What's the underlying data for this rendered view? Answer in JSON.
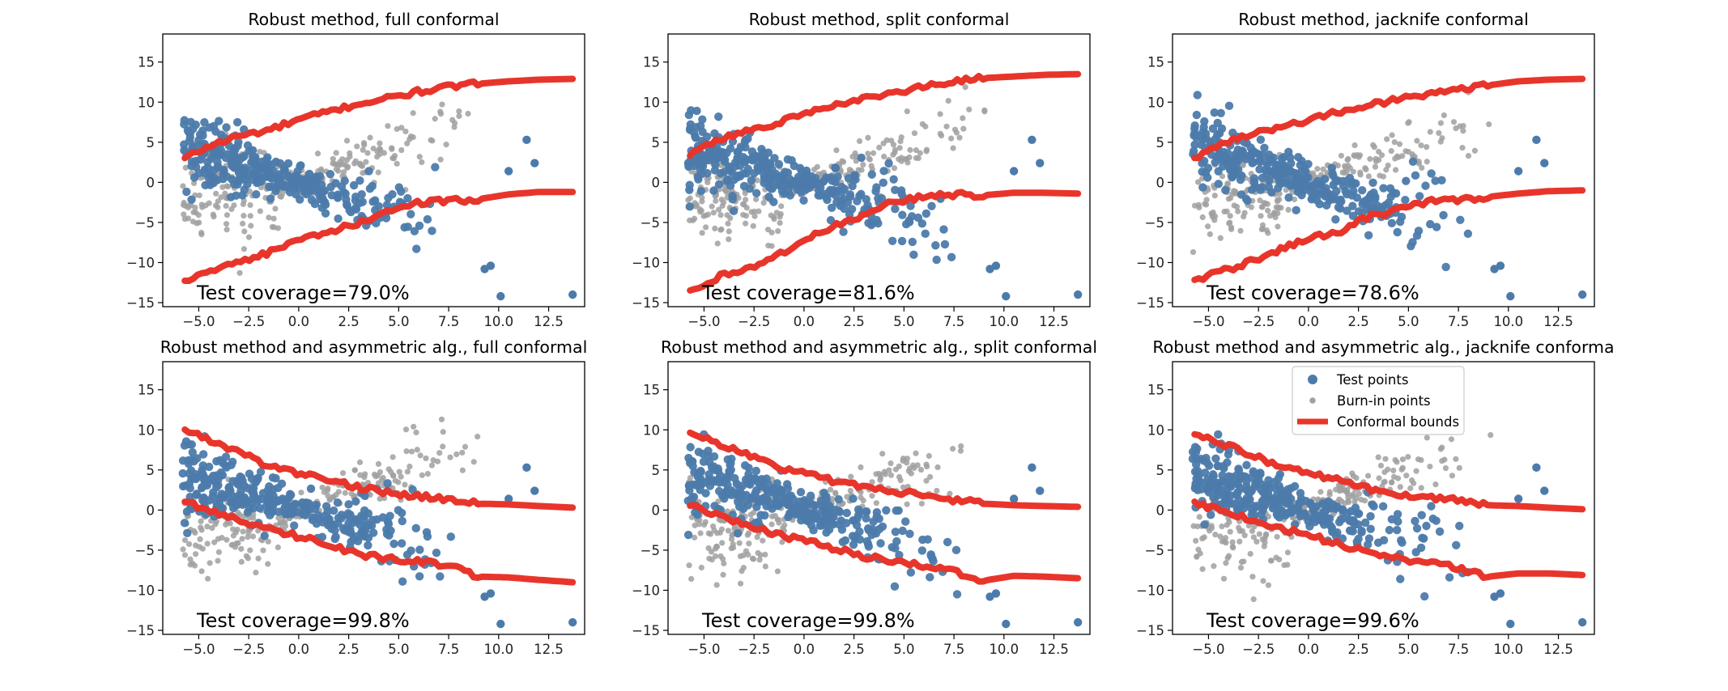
{
  "figure": {
    "legend": {
      "entries": [
        {
          "label": "Test points",
          "color": "#4c7bab"
        },
        {
          "label": "Burn-in points",
          "color": "#a0a0a0"
        },
        {
          "label": "Conformal bounds",
          "color": "#e8352b"
        }
      ]
    }
  },
  "chart_data": [
    {
      "type": "scatter",
      "title": "Robust method, full conformal",
      "annotation": "Test coverage=79.0%",
      "xlim": [
        -6.8,
        14.3
      ],
      "ylim": [
        -15.5,
        18.5
      ],
      "xticks": [
        -5.0,
        -2.5,
        0.0,
        2.5,
        5.0,
        7.5,
        10.0,
        12.5
      ],
      "yticks": [
        -15,
        -10,
        -5,
        0,
        5,
        10,
        15
      ],
      "xtick_labels": [
        "−5.0",
        "−2.5",
        "0.0",
        "2.5",
        "5.0",
        "7.5",
        "10.0",
        "12.5"
      ],
      "ytick_labels": [
        "−15",
        "−10",
        "−5",
        "0",
        "5",
        "10",
        "15"
      ],
      "grid": false,
      "series": [
        {
          "name": "Conformal bounds",
          "kind": "upper",
          "x": [
            -5.7,
            -4.5,
            -3.0,
            -1.5,
            0.0,
            1.5,
            3.0,
            4.5,
            6.0,
            7.5,
            9.0,
            10.5,
            12.0,
            13.7
          ],
          "y": [
            3.0,
            4.5,
            5.8,
            6.5,
            7.8,
            8.8,
            9.8,
            10.5,
            11.3,
            11.9,
            12.3,
            12.6,
            12.8,
            12.9
          ]
        },
        {
          "name": "Conformal bounds",
          "kind": "lower",
          "x": [
            -5.7,
            -4.5,
            -3.0,
            -1.5,
            0.0,
            1.5,
            3.0,
            4.5,
            6.0,
            7.5,
            9.0,
            10.5,
            12.0,
            13.7
          ],
          "y": [
            -12.3,
            -11.0,
            -9.8,
            -8.8,
            -7.2,
            -6.3,
            -5.0,
            -3.5,
            -2.6,
            -2.3,
            -2.1,
            -1.5,
            -1.2,
            -1.2
          ]
        }
      ]
    },
    {
      "type": "scatter",
      "title": "Robust method, split conformal",
      "annotation": "Test coverage=81.6%",
      "xlim": [
        -6.8,
        14.3
      ],
      "ylim": [
        -15.5,
        18.5
      ],
      "xticks": [
        -5.0,
        -2.5,
        0.0,
        2.5,
        5.0,
        7.5,
        10.0,
        12.5
      ],
      "yticks": [
        -15,
        -10,
        -5,
        0,
        5,
        10,
        15
      ],
      "xtick_labels": [
        "−5.0",
        "−2.5",
        "0.0",
        "2.5",
        "5.0",
        "7.5",
        "10.0",
        "12.5"
      ],
      "ytick_labels": [
        "−15",
        "−10",
        "−5",
        "0",
        "5",
        "10",
        "15"
      ],
      "grid": false,
      "series": [
        {
          "name": "Conformal bounds",
          "kind": "upper",
          "x": [
            -5.7,
            -4.5,
            -3.0,
            -1.5,
            0.0,
            1.5,
            3.0,
            4.5,
            6.0,
            7.5,
            9.0,
            10.5,
            12.0,
            13.7
          ],
          "y": [
            3.3,
            5.0,
            6.3,
            7.2,
            8.6,
            9.5,
            10.4,
            11.2,
            11.9,
            12.6,
            13.0,
            13.2,
            13.4,
            13.5
          ]
        },
        {
          "name": "Conformal bounds",
          "kind": "lower",
          "x": [
            -5.7,
            -4.5,
            -3.0,
            -1.5,
            0.0,
            1.5,
            3.0,
            4.5,
            6.0,
            7.5,
            9.0,
            10.5,
            12.0,
            13.7
          ],
          "y": [
            -13.5,
            -12.0,
            -10.8,
            -9.5,
            -7.2,
            -5.5,
            -4.0,
            -2.2,
            -1.8,
            -1.5,
            -1.6,
            -1.3,
            -1.3,
            -1.4
          ]
        }
      ]
    },
    {
      "type": "scatter",
      "title": "Robust method, jacknife conformal",
      "annotation": "Test coverage=78.6%",
      "xlim": [
        -6.8,
        14.3
      ],
      "ylim": [
        -15.5,
        18.5
      ],
      "xticks": [
        -5.0,
        -2.5,
        0.0,
        2.5,
        5.0,
        7.5,
        10.0,
        12.5
      ],
      "yticks": [
        -15,
        -10,
        -5,
        0,
        5,
        10,
        15
      ],
      "xtick_labels": [
        "−5.0",
        "−2.5",
        "0.0",
        "2.5",
        "5.0",
        "7.5",
        "10.0",
        "12.5"
      ],
      "ytick_labels": [
        "−15",
        "−10",
        "−5",
        "0",
        "5",
        "10",
        "15"
      ],
      "grid": false,
      "series": [
        {
          "name": "Conformal bounds",
          "kind": "upper",
          "x": [
            -5.7,
            -4.5,
            -3.0,
            -1.5,
            0.0,
            1.5,
            3.0,
            4.5,
            6.0,
            7.5,
            9.0,
            10.5,
            12.0,
            13.7
          ],
          "y": [
            3.0,
            4.8,
            6.0,
            6.8,
            7.8,
            8.8,
            9.6,
            10.4,
            11.0,
            11.6,
            12.1,
            12.6,
            12.8,
            12.9
          ]
        },
        {
          "name": "Conformal bounds",
          "kind": "lower",
          "x": [
            -5.7,
            -4.5,
            -3.0,
            -1.5,
            0.0,
            1.5,
            3.0,
            4.5,
            6.0,
            7.5,
            9.0,
            10.5,
            12.0,
            13.7
          ],
          "y": [
            -12.2,
            -11.2,
            -10.0,
            -8.5,
            -7.0,
            -6.2,
            -4.3,
            -3.5,
            -2.3,
            -2.3,
            -1.8,
            -1.4,
            -1.1,
            -1.0
          ]
        }
      ]
    },
    {
      "type": "scatter",
      "title": "Robust method and asymmetric alg., full conformal",
      "annotation": "Test coverage=99.8%",
      "xlim": [
        -6.8,
        14.3
      ],
      "ylim": [
        -15.5,
        18.5
      ],
      "xticks": [
        -5.0,
        -2.5,
        0.0,
        2.5,
        5.0,
        7.5,
        10.0,
        12.5
      ],
      "yticks": [
        -15,
        -10,
        -5,
        0,
        5,
        10,
        15
      ],
      "xtick_labels": [
        "−5.0",
        "−2.5",
        "0.0",
        "2.5",
        "5.0",
        "7.5",
        "10.0",
        "12.5"
      ],
      "ytick_labels": [
        "−15",
        "−10",
        "−5",
        "0",
        "5",
        "10",
        "15"
      ],
      "grid": false,
      "series": [
        {
          "name": "Conformal bounds",
          "kind": "upper",
          "x": [
            -5.7,
            -4.5,
            -3.0,
            -1.5,
            0.0,
            1.5,
            3.0,
            4.5,
            6.0,
            7.5,
            9.0,
            10.5,
            12.0,
            13.7
          ],
          "y": [
            10.0,
            8.8,
            7.3,
            5.5,
            4.6,
            3.8,
            2.8,
            2.2,
            1.7,
            1.3,
            0.8,
            0.7,
            0.5,
            0.3
          ]
        },
        {
          "name": "Conformal bounds",
          "kind": "lower",
          "x": [
            -5.7,
            -4.5,
            -3.0,
            -1.5,
            0.0,
            1.5,
            3.0,
            4.5,
            6.0,
            7.5,
            9.0,
            10.5,
            12.0,
            13.7
          ],
          "y": [
            1.0,
            0.0,
            -1.3,
            -2.4,
            -3.3,
            -4.3,
            -5.5,
            -6.0,
            -6.4,
            -7.0,
            -8.3,
            -8.4,
            -8.7,
            -9.0
          ]
        }
      ]
    },
    {
      "type": "scatter",
      "title": "Robust method and asymmetric alg., split conformal",
      "annotation": "Test coverage=99.8%",
      "xlim": [
        -6.8,
        14.3
      ],
      "ylim": [
        -15.5,
        18.5
      ],
      "xticks": [
        -5.0,
        -2.5,
        0.0,
        2.5,
        5.0,
        7.5,
        10.0,
        12.5
      ],
      "yticks": [
        -15,
        -10,
        -5,
        0,
        5,
        10,
        15
      ],
      "xtick_labels": [
        "−5.0",
        "−2.5",
        "0.0",
        "2.5",
        "5.0",
        "7.5",
        "10.0",
        "12.5"
      ],
      "ytick_labels": [
        "−15",
        "−10",
        "−5",
        "0",
        "5",
        "10",
        "15"
      ],
      "grid": false,
      "series": [
        {
          "name": "Conformal bounds",
          "kind": "upper",
          "x": [
            -5.7,
            -4.5,
            -3.0,
            -1.5,
            0.0,
            1.5,
            3.0,
            4.5,
            6.0,
            7.5,
            9.0,
            10.5,
            12.0,
            13.7
          ],
          "y": [
            9.6,
            8.5,
            7.0,
            5.5,
            4.6,
            3.6,
            3.0,
            2.3,
            1.9,
            1.3,
            0.8,
            0.6,
            0.5,
            0.4
          ]
        },
        {
          "name": "Conformal bounds",
          "kind": "lower",
          "x": [
            -5.7,
            -4.5,
            -3.0,
            -1.5,
            0.0,
            1.5,
            3.0,
            4.5,
            6.0,
            7.5,
            9.0,
            10.5,
            12.0,
            13.7
          ],
          "y": [
            0.5,
            -0.5,
            -1.8,
            -3.0,
            -3.8,
            -4.8,
            -5.8,
            -6.4,
            -7.0,
            -7.6,
            -8.8,
            -8.2,
            -8.3,
            -8.5
          ]
        }
      ]
    },
    {
      "type": "scatter",
      "title": "Robust method and asymmetric alg., jacknife conforma",
      "annotation": "Test coverage=99.6%",
      "xlim": [
        -6.8,
        14.3
      ],
      "ylim": [
        -15.5,
        18.5
      ],
      "xticks": [
        -5.0,
        -2.5,
        0.0,
        2.5,
        5.0,
        7.5,
        10.0,
        12.5
      ],
      "yticks": [
        -15,
        -10,
        -5,
        0,
        5,
        10,
        15
      ],
      "xtick_labels": [
        "−5.0",
        "−2.5",
        "0.0",
        "2.5",
        "5.0",
        "7.5",
        "10.0",
        "12.5"
      ],
      "ytick_labels": [
        "−15",
        "−10",
        "−5",
        "0",
        "5",
        "10",
        "15"
      ],
      "grid": false,
      "legend_placement": "top-center",
      "series": [
        {
          "name": "Conformal bounds",
          "kind": "upper",
          "x": [
            -5.7,
            -4.5,
            -3.0,
            -1.5,
            0.0,
            1.5,
            3.0,
            4.5,
            6.0,
            7.5,
            9.0,
            10.5,
            12.0,
            13.7
          ],
          "y": [
            9.4,
            8.5,
            7.0,
            5.5,
            4.6,
            3.7,
            2.6,
            2.0,
            1.6,
            1.2,
            0.6,
            0.5,
            0.3,
            0.1
          ]
        },
        {
          "name": "Conformal bounds",
          "kind": "lower",
          "x": [
            -5.7,
            -4.5,
            -3.0,
            -1.5,
            0.0,
            1.5,
            3.0,
            4.5,
            6.0,
            7.5,
            9.0,
            10.5,
            12.0,
            13.7
          ],
          "y": [
            1.0,
            0.0,
            -1.0,
            -2.3,
            -3.1,
            -4.3,
            -5.3,
            -6.0,
            -6.6,
            -7.2,
            -8.3,
            -7.9,
            -7.9,
            -8.1
          ]
        }
      ]
    }
  ]
}
